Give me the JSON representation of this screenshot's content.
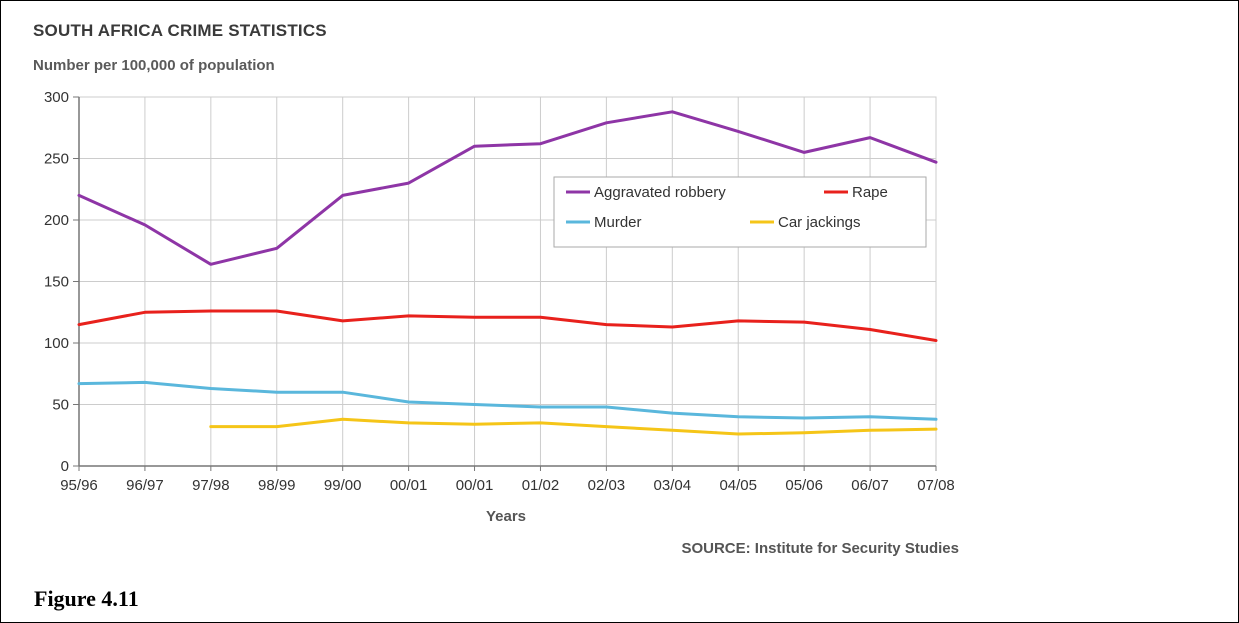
{
  "figure": {
    "caption": "Figure 4.11",
    "source": "SOURCE: Institute for Security Studies"
  },
  "colors": {
    "aggravated_robbery": "#8e35a6",
    "rape": "#e8211c",
    "murder": "#5ab7dc",
    "car_jackings": "#f5c518",
    "grid": "#cccccc",
    "axis": "#777777"
  },
  "chart_data": {
    "type": "line",
    "title": "SOUTH AFRICA CRIME STATISTICS",
    "subtitle": "Number per 100,000 of population",
    "xlabel": "Years",
    "ylabel": "",
    "ylim": [
      0,
      300
    ],
    "yticks": [
      0,
      50,
      100,
      150,
      200,
      250,
      300
    ],
    "grid": true,
    "legend_position": "top-right",
    "categories": [
      "95/96",
      "96/97",
      "97/98",
      "98/99",
      "99/00",
      "00/01",
      "00/01",
      "01/02",
      "02/03",
      "03/04",
      "04/05",
      "05/06",
      "06/07",
      "07/08"
    ],
    "series": [
      {
        "key": "aggravated_robbery",
        "name": "Aggravated robbery",
        "values": [
          220,
          196,
          164,
          177,
          220,
          230,
          260,
          262,
          279,
          288,
          272,
          255,
          267,
          247
        ]
      },
      {
        "key": "rape",
        "name": "Rape",
        "values": [
          115,
          125,
          126,
          126,
          118,
          122,
          121,
          121,
          115,
          113,
          118,
          117,
          111,
          102
        ]
      },
      {
        "key": "murder",
        "name": "Murder",
        "values": [
          67,
          68,
          63,
          60,
          60,
          52,
          50,
          48,
          48,
          43,
          40,
          39,
          40,
          38
        ]
      },
      {
        "key": "car_jackings",
        "name": "Car jackings",
        "values": [
          null,
          null,
          32,
          32,
          38,
          35,
          34,
          35,
          32,
          29,
          26,
          27,
          29,
          30
        ]
      }
    ]
  }
}
